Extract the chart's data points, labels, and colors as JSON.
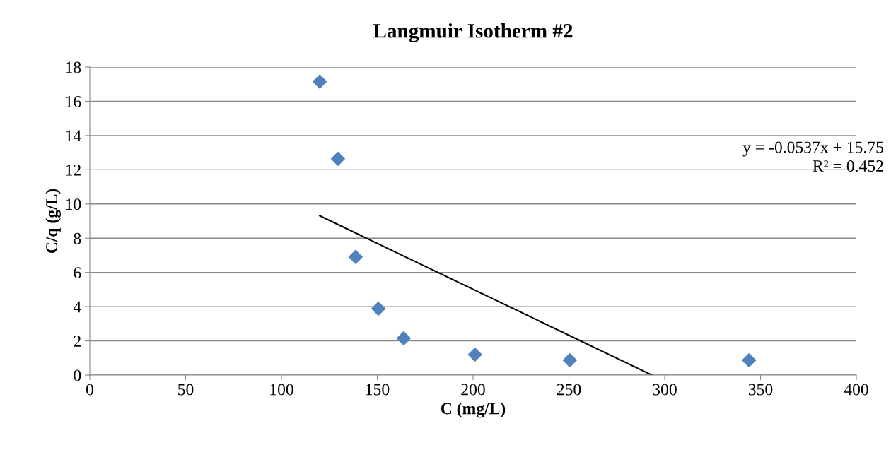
{
  "chart_data": {
    "type": "scatter",
    "title": "Langmuir Isotherm #2",
    "xlabel": "C (mg/L)",
    "ylabel": "C/q (g/L)",
    "xlim": [
      0,
      400
    ],
    "xticks": [
      0,
      50,
      100,
      150,
      200,
      250,
      300,
      350,
      400
    ],
    "ylim": [
      0,
      18
    ],
    "yticks": [
      0,
      2,
      4,
      6,
      8,
      10,
      12,
      14,
      16,
      18
    ],
    "grid": "y",
    "legend": false,
    "series": [
      {
        "marker": "diamond",
        "color": "#4f81bd",
        "x": [
          120,
          129.5,
          138.7,
          150.6,
          163.8,
          201,
          250.5,
          344
        ],
        "values": [
          17.15,
          12.64,
          6.9,
          3.88,
          2.15,
          1.2,
          0.87,
          0.87
        ]
      },
      {
        "type": "line",
        "marker": "none",
        "color": "#000000",
        "x": [
          120,
          293.3
        ],
        "values": [
          9.31,
          0
        ]
      }
    ],
    "annotations": [
      "y = -0.0537x + 15.75\nR² = 0.452"
    ]
  }
}
